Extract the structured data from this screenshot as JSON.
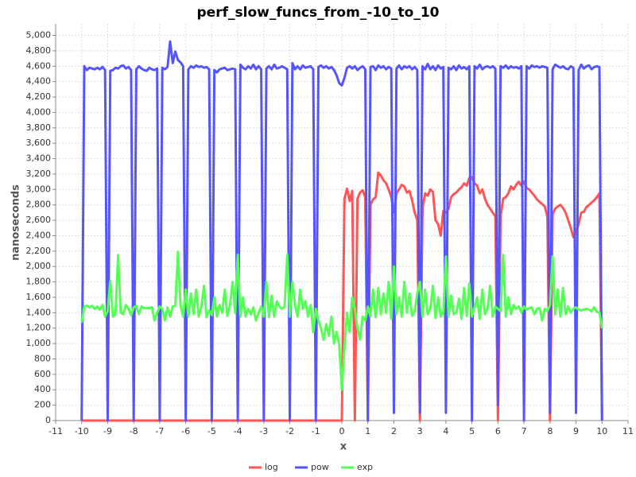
{
  "chart_data": {
    "type": "line",
    "title": "perf_slow_funcs_from_-10_to_10",
    "x_label": "x",
    "y_label": "nanoseconds",
    "x": [
      -10,
      -9.9,
      -9.8,
      -9.7,
      -9.6,
      -9.5,
      -9.4,
      -9.3,
      -9.2,
      -9.1,
      -9,
      -8.9,
      -8.8,
      -8.7,
      -8.6,
      -8.5,
      -8.4,
      -8.3,
      -8.2,
      -8.1,
      -8,
      -7.9,
      -7.8,
      -7.7,
      -7.6,
      -7.5,
      -7.4,
      -7.3,
      -7.2,
      -7.1,
      -7,
      -6.9,
      -6.8,
      -6.7,
      -6.6,
      -6.5,
      -6.4,
      -6.3,
      -6.2,
      -6.1,
      -6,
      -5.9,
      -5.8,
      -5.7,
      -5.6,
      -5.5,
      -5.4,
      -5.3,
      -5.2,
      -5.1,
      -5,
      -4.9,
      -4.8,
      -4.7,
      -4.6,
      -4.5,
      -4.4,
      -4.3,
      -4.2,
      -4.1,
      -4,
      -3.9,
      -3.8,
      -3.7,
      -3.6,
      -3.5,
      -3.4,
      -3.3,
      -3.2,
      -3.1,
      -3,
      -2.9,
      -2.8,
      -2.7,
      -2.6,
      -2.5,
      -2.4,
      -2.3,
      -2.2,
      -2.1,
      -2,
      -1.9,
      -1.8,
      -1.7,
      -1.6,
      -1.5,
      -1.4,
      -1.3,
      -1.2,
      -1.1,
      -1,
      -0.9,
      -0.8,
      -0.7,
      -0.6,
      -0.5,
      -0.4,
      -0.3,
      -0.2,
      -0.1,
      0,
      0.1,
      0.2,
      0.3,
      0.4,
      0.5,
      0.6,
      0.7,
      0.8,
      0.9,
      1,
      1.1,
      1.2,
      1.3,
      1.4,
      1.5,
      1.6,
      1.7,
      1.8,
      1.9,
      2,
      2.1,
      2.2,
      2.3,
      2.4,
      2.5,
      2.6,
      2.7,
      2.8,
      2.9,
      3,
      3.1,
      3.2,
      3.3,
      3.4,
      3.5,
      3.6,
      3.7,
      3.8,
      3.9,
      4,
      4.1,
      4.2,
      4.3,
      4.4,
      4.5,
      4.6,
      4.7,
      4.8,
      4.9,
      5,
      5.1,
      5.2,
      5.3,
      5.4,
      5.5,
      5.6,
      5.7,
      5.8,
      5.9,
      6,
      6.1,
      6.2,
      6.3,
      6.4,
      6.5,
      6.6,
      6.7,
      6.8,
      6.9,
      7,
      7.1,
      7.2,
      7.3,
      7.4,
      7.5,
      7.6,
      7.7,
      7.8,
      7.9,
      8,
      8.1,
      8.2,
      8.3,
      8.4,
      8.5,
      8.6,
      8.7,
      8.8,
      8.9,
      9,
      9.1,
      9.2,
      9.3,
      9.4,
      9.5,
      9.6,
      9.7,
      9.8,
      9.9,
      10
    ],
    "series": [
      {
        "name": "log",
        "color": "#ff5555",
        "values": [
          0,
          0,
          0,
          0,
          0,
          0,
          0,
          0,
          0,
          0,
          0,
          0,
          0,
          0,
          0,
          0,
          0,
          0,
          0,
          0,
          0,
          0,
          0,
          0,
          0,
          0,
          0,
          0,
          0,
          0,
          0,
          0,
          0,
          0,
          0,
          0,
          0,
          0,
          0,
          0,
          0,
          0,
          0,
          0,
          0,
          0,
          0,
          0,
          0,
          0,
          0,
          0,
          0,
          0,
          0,
          0,
          0,
          0,
          0,
          0,
          0,
          0,
          0,
          0,
          0,
          0,
          0,
          0,
          0,
          0,
          0,
          0,
          0,
          0,
          0,
          0,
          0,
          0,
          0,
          0,
          0,
          0,
          0,
          0,
          0,
          0,
          0,
          0,
          0,
          0,
          0,
          0,
          0,
          0,
          0,
          0,
          0,
          0,
          0,
          0,
          0,
          2880,
          3010,
          2850,
          2980,
          0,
          2880,
          2960,
          2990,
          2900,
          0,
          2800,
          2870,
          2900,
          3220,
          3180,
          3120,
          3080,
          3000,
          2900,
          2700,
          2950,
          3000,
          3060,
          3040,
          2960,
          2980,
          2860,
          2700,
          2600,
          0,
          2750,
          2950,
          2920,
          3000,
          2970,
          2600,
          2550,
          2400,
          2720,
          2700,
          2750,
          2900,
          2940,
          2960,
          3000,
          3030,
          3080,
          3050,
          3150,
          3160,
          3080,
          3050,
          2950,
          3000,
          2880,
          2800,
          2750,
          2700,
          2650,
          0,
          2650,
          2880,
          2900,
          2950,
          3040,
          3000,
          3060,
          3100,
          3050,
          3100,
          3020,
          3000,
          2960,
          2920,
          2870,
          2840,
          2810,
          2780,
          2640,
          0,
          2680,
          2750,
          2780,
          2800,
          2760,
          2700,
          2600,
          2500,
          2380,
          2450,
          2550,
          2700,
          2710,
          2770,
          2800,
          2830,
          2860,
          2900,
          2950,
          0
        ]
      },
      {
        "name": "pow",
        "color": "#5555ff",
        "values": [
          0,
          4600,
          4550,
          4580,
          4570,
          4560,
          4580,
          4560,
          4590,
          4550,
          0,
          4540,
          4550,
          4580,
          4570,
          4600,
          4610,
          4570,
          4590,
          4550,
          0,
          4560,
          4600,
          4570,
          4550,
          4540,
          4580,
          4560,
          4550,
          4570,
          0,
          4580,
          4560,
          4590,
          4920,
          4640,
          4790,
          4680,
          4650,
          4600,
          0,
          4560,
          4600,
          4580,
          4610,
          4590,
          4600,
          4580,
          4590,
          4560,
          0,
          4550,
          4520,
          4560,
          4570,
          4580,
          4550,
          4560,
          4570,
          4560,
          0,
          4620,
          4580,
          4560,
          4600,
          4570,
          4620,
          4560,
          4600,
          4560,
          0,
          4570,
          4600,
          4560,
          4620,
          4570,
          4580,
          4600,
          4580,
          4560,
          0,
          4640,
          4560,
          4600,
          4560,
          4610,
          4580,
          4590,
          4600,
          4560,
          0,
          4590,
          4610,
          4580,
          4600,
          4570,
          4590,
          4550,
          4480,
          4380,
          4350,
          4450,
          4580,
          4600,
          4570,
          4600,
          4550,
          4580,
          4600,
          4560,
          0,
          4590,
          4600,
          4550,
          4610,
          4580,
          4600,
          4560,
          4590,
          4570,
          100,
          4570,
          4610,
          4560,
          4600,
          4580,
          4600,
          4560,
          4590,
          4550,
          100,
          4600,
          4560,
          4630,
          4560,
          4600,
          4550,
          4610,
          4570,
          4590,
          100,
          4580,
          4560,
          4600,
          4550,
          4610,
          4570,
          4590,
          4560,
          4600,
          0,
          4600,
          4570,
          4620,
          4560,
          4590,
          4600,
          4580,
          4600,
          4570,
          200,
          4600,
          4580,
          4610,
          4570,
          4600,
          4580,
          4590,
          4570,
          4600,
          0,
          4600,
          4570,
          4610,
          4590,
          4600,
          4580,
          4600,
          4590,
          4580,
          100,
          4560,
          4620,
          4600,
          4580,
          4600,
          4570,
          4560,
          4600,
          4580,
          100,
          4550,
          4620,
          4570,
          4600,
          4610,
          4560,
          4590,
          4600,
          4590,
          0
        ]
      },
      {
        "name": "exp",
        "color": "#55ff55",
        "values": [
          1270,
          1480,
          1490,
          1470,
          1490,
          1450,
          1480,
          1440,
          1500,
          1350,
          1420,
          1810,
          1350,
          1380,
          2150,
          1400,
          1380,
          1500,
          1450,
          1370,
          1470,
          1490,
          1380,
          1480,
          1460,
          1460,
          1460,
          1470,
          1300,
          1400,
          1480,
          1450,
          1300,
          1470,
          1350,
          1480,
          1490,
          2190,
          1500,
          1350,
          1700,
          1350,
          1650,
          1380,
          1700,
          1350,
          1480,
          1750,
          1340,
          1430,
          1370,
          1600,
          1350,
          1500,
          1400,
          1700,
          1360,
          1500,
          1800,
          1400,
          2150,
          1350,
          1600,
          1350,
          1450,
          1380,
          1470,
          1300,
          1400,
          1480,
          1350,
          1800,
          1340,
          1620,
          1350,
          1550,
          1480,
          1450,
          1480,
          2150,
          1350,
          1800,
          1500,
          1350,
          1700,
          1450,
          1550,
          1350,
          1500,
          1150,
          1450,
          1300,
          1200,
          1050,
          1250,
          1100,
          1350,
          1000,
          1150,
          980,
          400,
          950,
          1400,
          1150,
          1600,
          1450,
          1200,
          1050,
          1350,
          1300,
          1480,
          1350,
          1700,
          1340,
          1720,
          1380,
          1650,
          1400,
          1800,
          1320,
          2000,
          1380,
          1600,
          1350,
          1800,
          1400,
          1650,
          1360,
          1420,
          1650,
          1800,
          1350,
          1700,
          1380,
          1450,
          1750,
          1330,
          1600,
          1350,
          1400,
          2130,
          1350,
          1620,
          1380,
          1400,
          1580,
          1320,
          1720,
          1360,
          1780,
          1350,
          1470,
          1600,
          1320,
          1700,
          1380,
          1450,
          1750,
          1350,
          1480,
          1450,
          1420,
          2150,
          1350,
          1600,
          1380,
          1500,
          1450,
          1480,
          1400,
          1480,
          1440,
          1460,
          1470,
          1380,
          1450,
          1460,
          1300,
          1450,
          1420,
          1500,
          2130,
          1380,
          1700,
          1350,
          1720,
          1380,
          1480,
          1400,
          1450,
          1470,
          1440,
          1430,
          1440,
          1450,
          1440,
          1420,
          1470,
          1410,
          1400,
          1200
        ]
      }
    ],
    "xlim": [
      -11,
      11
    ],
    "xticks": [
      -11,
      -10,
      -9,
      -8,
      -7,
      -6,
      -5,
      -4,
      -3,
      -2,
      -1,
      0,
      1,
      2,
      3,
      4,
      5,
      6,
      7,
      8,
      9,
      10,
      11
    ],
    "ylim": [
      0,
      5150
    ],
    "yticks": [
      0,
      200,
      400,
      600,
      800,
      {
        "value": 1000,
        "label": "1,000"
      },
      {
        "value": 1200,
        "label": "1,200"
      },
      {
        "value": 1400,
        "label": "1,400"
      },
      {
        "value": 1600,
        "label": "1,600"
      },
      {
        "value": 1800,
        "label": "1,800"
      },
      {
        "value": 2000,
        "label": "2,000"
      },
      {
        "value": 2200,
        "label": "2,200"
      },
      {
        "value": 2400,
        "label": "2,400"
      },
      {
        "value": 2600,
        "label": "2,600"
      },
      {
        "value": 2800,
        "label": "2,800"
      },
      {
        "value": 3000,
        "label": "3,000"
      },
      {
        "value": 3200,
        "label": "3,200"
      },
      {
        "value": 3400,
        "label": "3,400"
      },
      {
        "value": 3600,
        "label": "3,600"
      },
      {
        "value": 3800,
        "label": "3,800"
      },
      {
        "value": 4000,
        "label": "4,000"
      },
      {
        "value": 4200,
        "label": "4,200"
      },
      {
        "value": 4400,
        "label": "4,400"
      },
      {
        "value": 4600,
        "label": "4,600"
      },
      {
        "value": 4800,
        "label": "4,800"
      },
      {
        "value": 5000,
        "label": "5,000"
      }
    ],
    "grid": true,
    "legend": "bottom"
  }
}
